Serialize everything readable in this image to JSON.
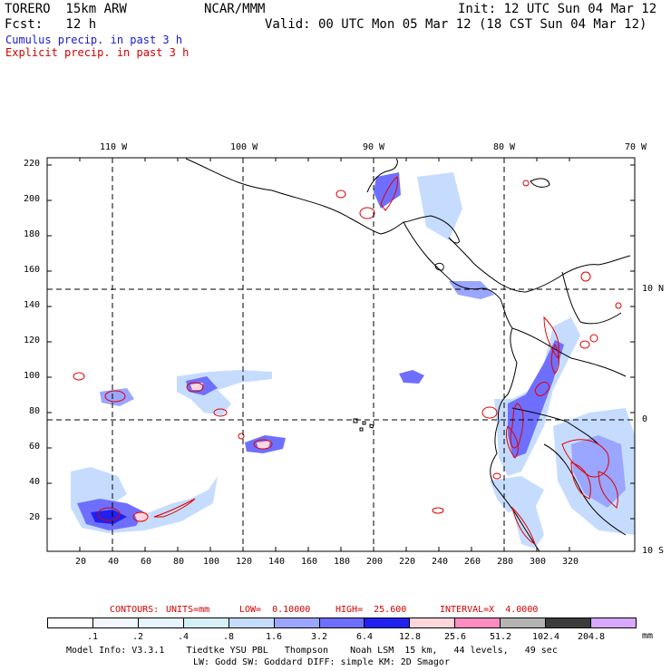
{
  "header": {
    "model": "TORERO  15km ARW",
    "org": "NCAR/MMM",
    "init": "Init: 12 UTC Sun 04 Mar 12",
    "fcst_label": "Fcst:   12 h",
    "valid": "Valid: 00 UTC Mon 05 Mar 12 (18 CST Sun 04 Mar 12)",
    "field1": "Cumulus precip. in past 3 h",
    "field2": "Explicit precip. in past 3 h"
  },
  "map": {
    "top_lon_labels": [
      "110 W",
      "100 W",
      "90 W",
      "80 W",
      "70 W"
    ],
    "right_lat_labels": [
      "10 N",
      "0",
      "10 S"
    ],
    "y_ticks": [
      "220",
      "200",
      "180",
      "160",
      "140",
      "120",
      "100",
      "80",
      "60",
      "40",
      "20"
    ],
    "x_ticks": [
      "20",
      "40",
      "60",
      "80",
      "100",
      "120",
      "140",
      "160",
      "180",
      "200",
      "220",
      "240",
      "260",
      "280",
      "300",
      "320"
    ]
  },
  "contours": {
    "label": "CONTOURS:",
    "units": "UNITS=mm",
    "low": "LOW=  0.10000",
    "high": "HIGH=  25.600",
    "interval": "INTERVAL=X  4.0000"
  },
  "colorbar": {
    "levels": [
      ".1",
      ".2",
      ".4",
      ".8",
      "1.6",
      "3.2",
      "6.4",
      "12.8",
      "25.6",
      "51.2",
      "102.4",
      "204.8"
    ],
    "unit": "mm",
    "colors": [
      "#ffffff",
      "#f2f6ff",
      "#e6f5ff",
      "#d6f0f7",
      "#c6dcff",
      "#9aa6ff",
      "#6f6fff",
      "#2020f0",
      "#ffd6dc",
      "#ff8cc0",
      "#b4b4b4",
      "#3c3c3c",
      "#d8a8ff"
    ]
  },
  "footer": {
    "line1": "Model Info: V3.3.1    Tiedtke YSU PBL   Thompson    Noah LSM  15 km,   44 levels,   49 sec",
    "line2": "LW: Godd SW: Goddard DIFF: simple KM: 2D Smagor"
  }
}
